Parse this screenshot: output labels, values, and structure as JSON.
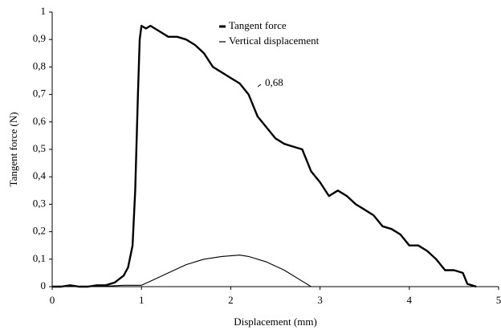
{
  "chart_data": {
    "type": "line",
    "xlabel": "Displacement (mm)",
    "ylabel": "Tangent force (N)",
    "annotation": "0,68",
    "xlim": [
      0,
      5
    ],
    "xticks": [
      0,
      1,
      2,
      3,
      4,
      5
    ],
    "ylim": [
      0,
      1
    ],
    "yticks": [
      0,
      {
        "value": 0.1,
        "label": "0,1"
      },
      {
        "value": 0.2,
        "label": "0,2"
      },
      {
        "value": 0.3,
        "label": "0,3"
      },
      {
        "value": 0.4,
        "label": "0,4"
      },
      {
        "value": 0.5,
        "label": "0,5"
      },
      {
        "value": 0.6,
        "label": "0,6"
      },
      {
        "value": 0.7,
        "label": "0,7"
      },
      {
        "value": 0.8,
        "label": "0,8"
      },
      {
        "value": 0.9,
        "label": "0,9"
      },
      1
    ],
    "series": [
      {
        "name": "Tangent force",
        "color": "#000000",
        "x": [
          0,
          0.1,
          0.2,
          0.3,
          0.4,
          0.5,
          0.6,
          0.7,
          0.8,
          0.85,
          0.9,
          0.93,
          0.96,
          0.98,
          1.0,
          1.05,
          1.1,
          1.2,
          1.3,
          1.4,
          1.5,
          1.6,
          1.7,
          1.8,
          1.9,
          2.0,
          2.1,
          2.2,
          2.3,
          2.4,
          2.5,
          2.6,
          2.7,
          2.8,
          2.9,
          3.0,
          3.1,
          3.2,
          3.3,
          3.4,
          3.5,
          3.6,
          3.7,
          3.8,
          3.9,
          4.0,
          4.1,
          4.2,
          4.3,
          4.4,
          4.5,
          4.6,
          4.65,
          4.7,
          4.75
        ],
        "values": [
          0,
          0,
          0.005,
          0,
          0,
          0.005,
          0.005,
          0.015,
          0.04,
          0.07,
          0.15,
          0.35,
          0.7,
          0.9,
          0.95,
          0.94,
          0.95,
          0.93,
          0.91,
          0.91,
          0.9,
          0.88,
          0.85,
          0.8,
          0.78,
          0.76,
          0.74,
          0.7,
          0.62,
          0.58,
          0.54,
          0.52,
          0.51,
          0.5,
          0.42,
          0.38,
          0.33,
          0.35,
          0.33,
          0.3,
          0.28,
          0.26,
          0.22,
          0.21,
          0.19,
          0.15,
          0.15,
          0.13,
          0.1,
          0.06,
          0.06,
          0.05,
          0.01,
          0.005,
          0
        ]
      },
      {
        "name": "Vertical displacement",
        "color": "#000000",
        "x": [
          0,
          0.5,
          0.8,
          0.9,
          1.0,
          1.1,
          1.3,
          1.5,
          1.7,
          1.9,
          2.1,
          2.2,
          2.4,
          2.6,
          2.8,
          2.9
        ],
        "values": [
          0,
          0,
          0.005,
          0.005,
          0.005,
          0.02,
          0.05,
          0.08,
          0.1,
          0.11,
          0.115,
          0.11,
          0.09,
          0.06,
          0.02,
          0
        ]
      }
    ]
  }
}
